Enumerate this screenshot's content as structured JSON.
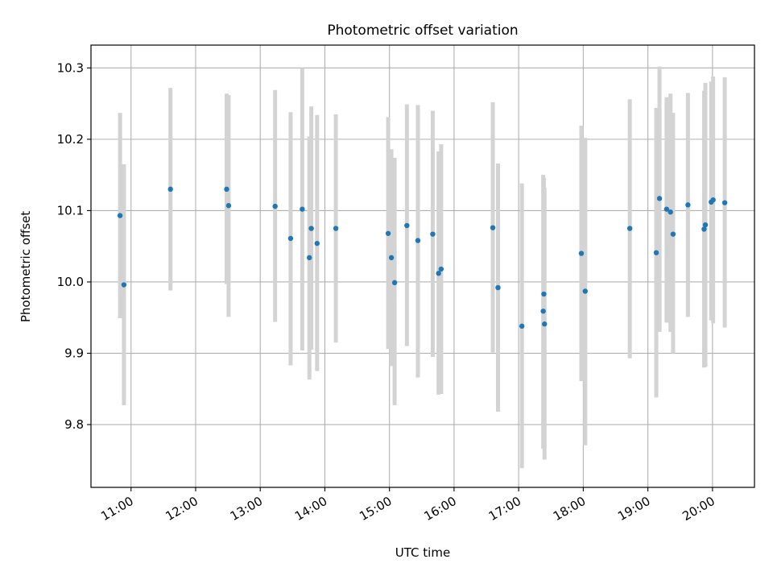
{
  "chart_data": {
    "type": "scatter",
    "title": "Photometric offset variation",
    "xlabel": "UTC time",
    "ylabel": "Photometric offset",
    "grid": true,
    "x_unit": "hours (UTC)",
    "xlim": [
      10.38,
      20.65
    ],
    "ylim": [
      9.712,
      10.332
    ],
    "x_ticks": [
      {
        "value": 11,
        "label": "11:00"
      },
      {
        "value": 12,
        "label": "12:00"
      },
      {
        "value": 13,
        "label": "13:00"
      },
      {
        "value": 14,
        "label": "14:00"
      },
      {
        "value": 15,
        "label": "15:00"
      },
      {
        "value": 16,
        "label": "16:00"
      },
      {
        "value": 17,
        "label": "17:00"
      },
      {
        "value": 18,
        "label": "18:00"
      },
      {
        "value": 19,
        "label": "19:00"
      },
      {
        "value": 20,
        "label": "20:00"
      }
    ],
    "y_ticks": [
      {
        "value": 9.8,
        "label": "9.8"
      },
      {
        "value": 9.9,
        "label": "9.9"
      },
      {
        "value": 10.0,
        "label": "10.0"
      },
      {
        "value": 10.1,
        "label": "10.1"
      },
      {
        "value": 10.2,
        "label": "10.2"
      },
      {
        "value": 10.3,
        "label": "10.3"
      }
    ],
    "colors": {
      "point": "#1f77b4",
      "errorbar": "#d3d3d3",
      "grid": "#b0b0b0"
    },
    "series": [
      {
        "points": [
          {
            "x": 10.83,
            "y": 10.093,
            "lo": 9.949,
            "hi": 10.237
          },
          {
            "x": 10.89,
            "y": 9.996,
            "lo": 9.827,
            "hi": 10.165
          },
          {
            "x": 11.61,
            "y": 10.13,
            "lo": 9.988,
            "hi": 10.272
          },
          {
            "x": 12.48,
            "y": 10.13,
            "lo": 9.997,
            "hi": 10.264
          },
          {
            "x": 12.51,
            "y": 10.107,
            "lo": 9.951,
            "hi": 10.262
          },
          {
            "x": 13.23,
            "y": 10.106,
            "lo": 9.944,
            "hi": 10.269
          },
          {
            "x": 13.47,
            "y": 10.061,
            "lo": 9.883,
            "hi": 10.238
          },
          {
            "x": 13.65,
            "y": 10.102,
            "lo": 9.904,
            "hi": 10.3
          },
          {
            "x": 13.76,
            "y": 10.034,
            "lo": 9.863,
            "hi": 10.204
          },
          {
            "x": 13.79,
            "y": 10.075,
            "lo": 9.905,
            "hi": 10.246
          },
          {
            "x": 13.88,
            "y": 10.054,
            "lo": 9.875,
            "hi": 10.234
          },
          {
            "x": 14.17,
            "y": 10.075,
            "lo": 9.915,
            "hi": 10.235
          },
          {
            "x": 14.98,
            "y": 10.068,
            "lo": 9.906,
            "hi": 10.231
          },
          {
            "x": 15.03,
            "y": 10.034,
            "lo": 9.882,
            "hi": 10.186
          },
          {
            "x": 15.08,
            "y": 9.999,
            "lo": 9.827,
            "hi": 10.174
          },
          {
            "x": 15.27,
            "y": 10.079,
            "lo": 9.91,
            "hi": 10.249
          },
          {
            "x": 15.44,
            "y": 10.058,
            "lo": 9.866,
            "hi": 10.248
          },
          {
            "x": 15.67,
            "y": 10.067,
            "lo": 9.895,
            "hi": 10.24
          },
          {
            "x": 15.76,
            "y": 10.012,
            "lo": 9.842,
            "hi": 10.183
          },
          {
            "x": 15.8,
            "y": 10.018,
            "lo": 9.843,
            "hi": 10.193
          },
          {
            "x": 16.6,
            "y": 10.076,
            "lo": 9.901,
            "hi": 10.252
          },
          {
            "x": 16.68,
            "y": 9.992,
            "lo": 9.818,
            "hi": 10.166
          },
          {
            "x": 17.05,
            "y": 9.938,
            "lo": 9.739,
            "hi": 10.138
          },
          {
            "x": 17.38,
            "y": 9.959,
            "lo": 9.766,
            "hi": 10.15
          },
          {
            "x": 17.4,
            "y": 9.941,
            "lo": 9.751,
            "hi": 10.132
          },
          {
            "x": 17.39,
            "y": 9.983,
            "lo": 9.768,
            "hi": 10.146
          },
          {
            "x": 17.97,
            "y": 10.04,
            "lo": 9.861,
            "hi": 10.219
          },
          {
            "x": 18.03,
            "y": 9.987,
            "lo": 9.771,
            "hi": 10.202
          },
          {
            "x": 18.72,
            "y": 10.075,
            "lo": 9.893,
            "hi": 10.256
          },
          {
            "x": 19.13,
            "y": 10.041,
            "lo": 9.838,
            "hi": 10.244
          },
          {
            "x": 19.18,
            "y": 10.117,
            "lo": 9.93,
            "hi": 10.302
          },
          {
            "x": 19.29,
            "y": 10.102,
            "lo": 9.943,
            "hi": 10.259
          },
          {
            "x": 19.35,
            "y": 10.098,
            "lo": 9.93,
            "hi": 10.264
          },
          {
            "x": 19.39,
            "y": 10.067,
            "lo": 9.9,
            "hi": 10.237
          },
          {
            "x": 19.62,
            "y": 10.108,
            "lo": 9.951,
            "hi": 10.265
          },
          {
            "x": 19.87,
            "y": 10.074,
            "lo": 9.88,
            "hi": 10.268
          },
          {
            "x": 19.89,
            "y": 10.08,
            "lo": 9.881,
            "hi": 10.279
          },
          {
            "x": 19.98,
            "y": 10.112,
            "lo": 9.946,
            "hi": 10.281
          },
          {
            "x": 20.01,
            "y": 10.115,
            "lo": 9.942,
            "hi": 10.288
          },
          {
            "x": 20.19,
            "y": 10.111,
            "lo": 9.936,
            "hi": 10.287
          }
        ]
      }
    ]
  }
}
